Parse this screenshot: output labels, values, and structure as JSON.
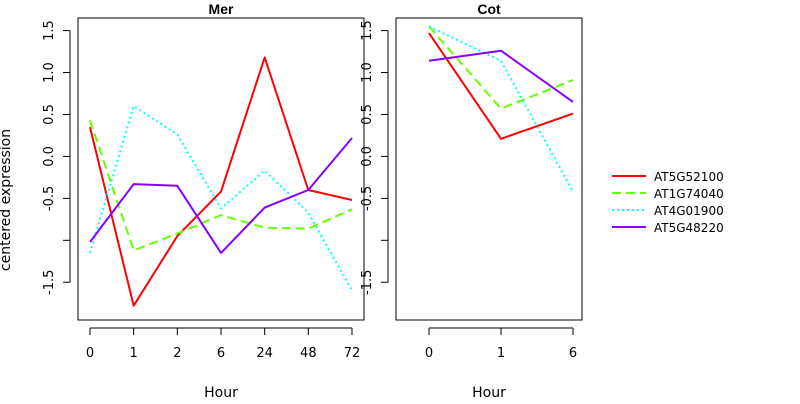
{
  "chart_data": [
    {
      "type": "line",
      "title": "Mer",
      "xlabel": "Hour",
      "ylabel": "centered expression",
      "categories": [
        "0",
        "1",
        "2",
        "6",
        "24",
        "48",
        "72"
      ],
      "ylim": [
        -1.95,
        1.65
      ],
      "yticks": [
        "1.5",
        "1.0",
        "0.5",
        "0.0",
        "-0.5",
        "",
        "-1.5"
      ],
      "ytick_values": [
        1.5,
        1.0,
        0.5,
        0.0,
        -0.5,
        -1.0,
        -1.5
      ],
      "grid": false,
      "series": [
        {
          "name": "AT5G52100",
          "values": [
            0.35,
            -1.78,
            -0.95,
            -0.42,
            1.18,
            -0.4,
            -0.52
          ]
        },
        {
          "name": "AT1G74040",
          "values": [
            0.43,
            -1.12,
            -0.92,
            -0.7,
            -0.85,
            -0.86,
            -0.63
          ]
        },
        {
          "name": "AT4G01900",
          "values": [
            -1.15,
            0.6,
            0.26,
            -0.62,
            -0.17,
            -0.67,
            -1.6
          ]
        },
        {
          "name": "AT5G48220",
          "values": [
            -1.02,
            -0.33,
            -0.35,
            -1.15,
            -0.61,
            -0.4,
            0.22
          ]
        }
      ]
    },
    {
      "type": "line",
      "title": "Cot",
      "xlabel": "Hour",
      "ylabel": "",
      "categories": [
        "0",
        "1",
        "6"
      ],
      "ylim": [
        -1.95,
        1.65
      ],
      "yticks": [
        "1.5",
        "1.0",
        "0.5",
        "0.0",
        "-0.5",
        "",
        "-1.5"
      ],
      "ytick_values": [
        1.5,
        1.0,
        0.5,
        0.0,
        -0.5,
        -1.0,
        -1.5
      ],
      "grid": false,
      "series": [
        {
          "name": "AT5G52100",
          "values": [
            1.47,
            0.21,
            0.51
          ]
        },
        {
          "name": "AT1G74040",
          "values": [
            1.55,
            0.57,
            0.91
          ]
        },
        {
          "name": "AT4G01900",
          "values": [
            1.55,
            1.14,
            -0.42
          ]
        },
        {
          "name": "AT5G48220",
          "values": [
            1.14,
            1.26,
            0.65
          ]
        }
      ]
    }
  ],
  "legend": {
    "placement": "right",
    "entries": [
      {
        "label": "AT5G52100",
        "color": "#ff0000",
        "dash": "solid"
      },
      {
        "label": "AT1G74040",
        "color": "#66ff00",
        "dash": "dashed"
      },
      {
        "label": "AT4G01900",
        "color": "#00ffff",
        "dash": "dotted"
      },
      {
        "label": "AT5G48220",
        "color": "#8800ff",
        "dash": "solid"
      }
    ]
  }
}
